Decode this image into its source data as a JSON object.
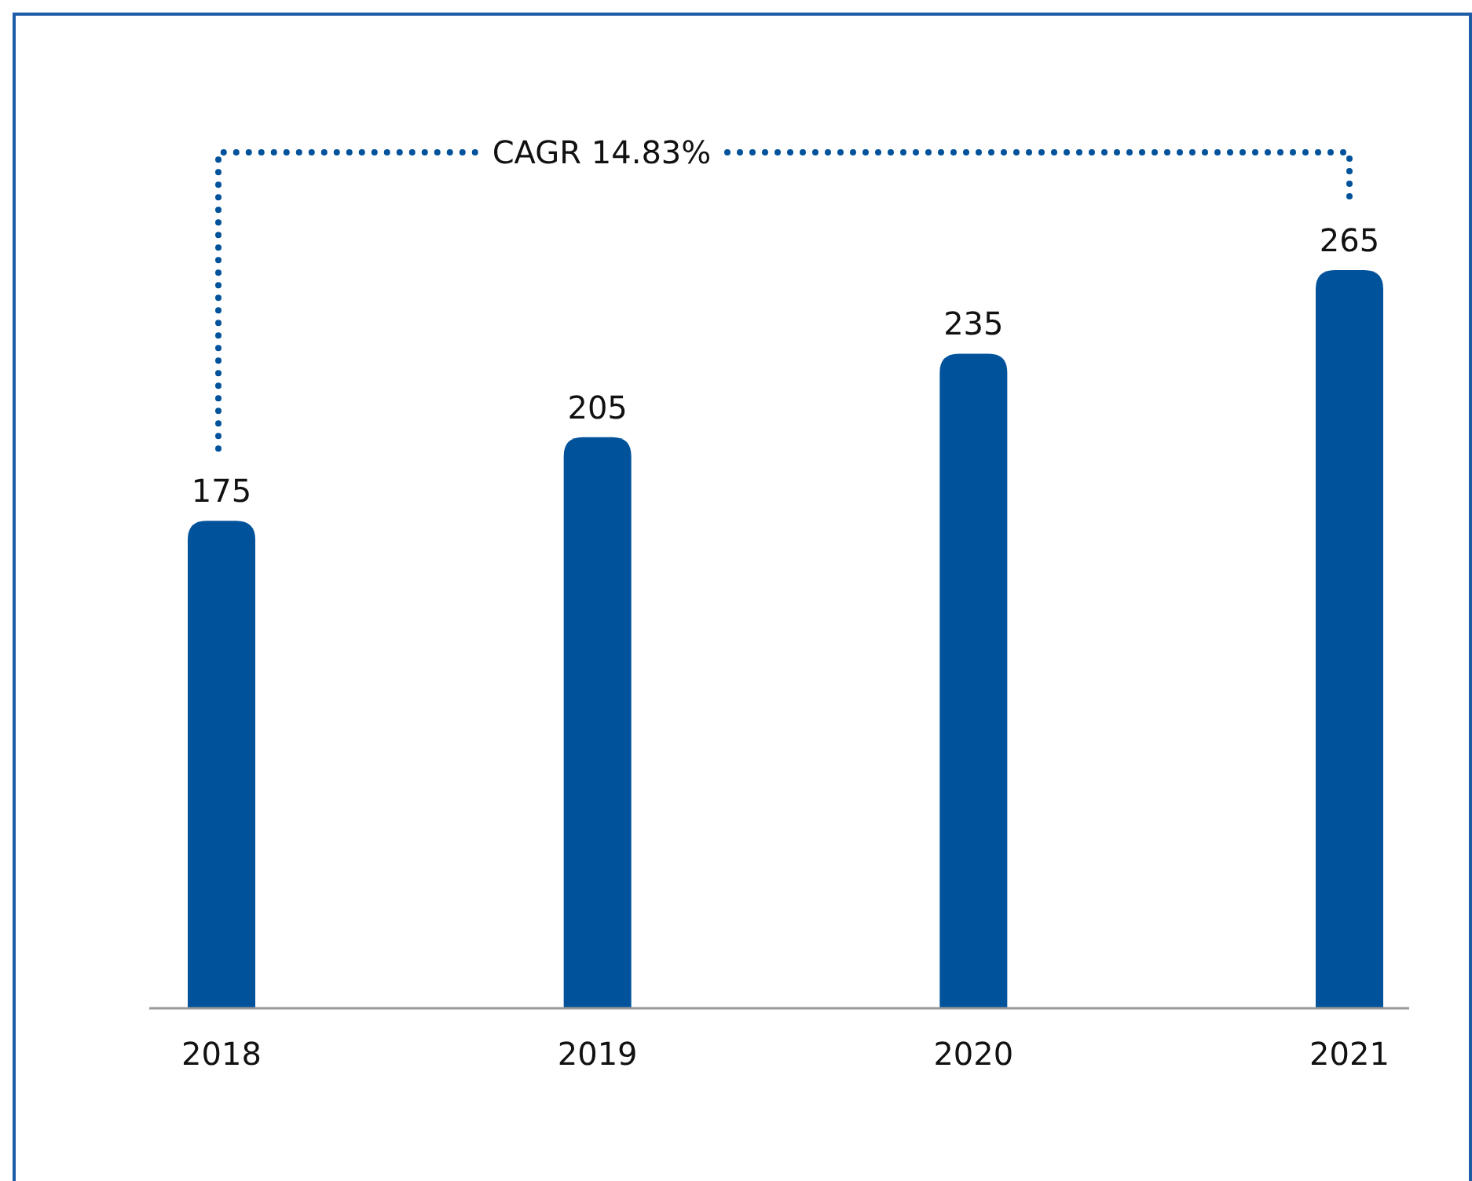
{
  "chart_data": {
    "type": "bar",
    "categories": [
      "2018",
      "2019",
      "2020",
      "2021"
    ],
    "values": [
      175,
      205,
      235,
      265
    ],
    "color": "#00529b",
    "data_labels": true,
    "annotations": [
      "CAGR 14.83%"
    ]
  }
}
